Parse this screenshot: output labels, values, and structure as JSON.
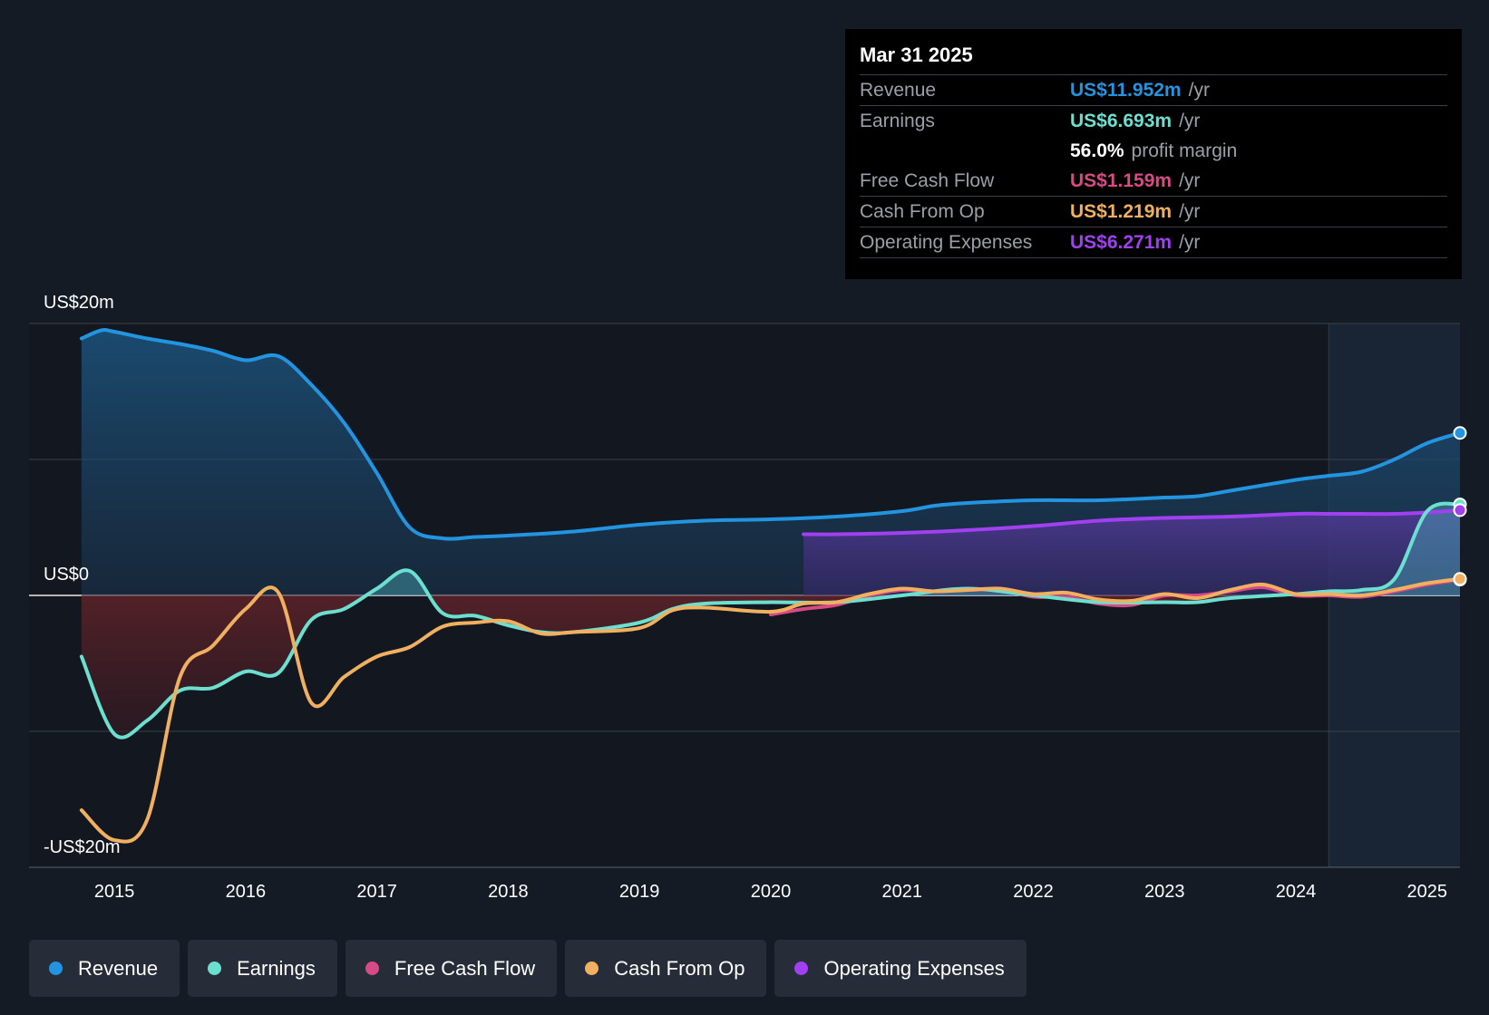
{
  "tooltip": {
    "date": "Mar 31 2025",
    "rows": [
      {
        "label": "Revenue",
        "value": "US$11.952m",
        "unit": "/yr",
        "color": "#2394df"
      },
      {
        "label": "Earnings",
        "value": "US$6.693m",
        "unit": "/yr",
        "color": "#6ce0d0"
      },
      {
        "label": "",
        "value": "56.0%",
        "unit": "profit margin",
        "color": "#ffffff"
      },
      {
        "label": "Free Cash Flow",
        "value": "US$1.159m",
        "unit": "/yr",
        "color": "#d84a86"
      },
      {
        "label": "Cash From Op",
        "value": "US$1.219m",
        "unit": "/yr",
        "color": "#f0b060"
      },
      {
        "label": "Operating Expenses",
        "value": "US$6.271m",
        "unit": "/yr",
        "color": "#a040f0"
      }
    ]
  },
  "legend": [
    {
      "label": "Revenue",
      "color": "#2394df"
    },
    {
      "label": "Earnings",
      "color": "#6ce0d0"
    },
    {
      "label": "Free Cash Flow",
      "color": "#d84a86"
    },
    {
      "label": "Cash From Op",
      "color": "#f0b060"
    },
    {
      "label": "Operating Expenses",
      "color": "#a040f0"
    }
  ],
  "chart_data": {
    "type": "line",
    "y_tick_labels": [
      "US$20m",
      "US$0",
      "-US$20m"
    ],
    "ylim": [
      -20,
      20
    ],
    "y_unit": "US$m",
    "xlim": [
      2014.35,
      2025.25
    ],
    "x_tick_labels": [
      "2015",
      "2016",
      "2017",
      "2018",
      "2019",
      "2020",
      "2021",
      "2022",
      "2023",
      "2024",
      "2025"
    ],
    "x_ticks": [
      2015,
      2016,
      2017,
      2018,
      2019,
      2020,
      2021,
      2022,
      2023,
      2024,
      2025
    ],
    "grid": true,
    "forecast_shade_start": 2024.25,
    "series": [
      {
        "name": "Revenue",
        "color": "#2394df",
        "fill": true,
        "x": [
          2014.75,
          2014.9,
          2015.0,
          2015.25,
          2015.5,
          2015.75,
          2016.0,
          2016.25,
          2016.5,
          2016.75,
          2017.0,
          2017.25,
          2017.5,
          2017.75,
          2018.0,
          2018.5,
          2019.0,
          2019.5,
          2020.0,
          2020.5,
          2021.0,
          2021.25,
          2021.5,
          2022.0,
          2022.5,
          2023.0,
          2023.25,
          2023.5,
          2024.0,
          2024.25,
          2024.5,
          2024.75,
          2025.0,
          2025.25
        ],
        "y": [
          18.9,
          19.5,
          19.4,
          18.9,
          18.5,
          18.0,
          17.3,
          17.6,
          15.5,
          12.7,
          9.0,
          5.0,
          4.2,
          4.3,
          4.4,
          4.7,
          5.2,
          5.5,
          5.6,
          5.8,
          6.2,
          6.6,
          6.8,
          7.0,
          7.0,
          7.2,
          7.3,
          7.7,
          8.5,
          8.8,
          9.1,
          10.0,
          11.2,
          11.952
        ]
      },
      {
        "name": "Earnings",
        "color": "#6ce0d0",
        "fill": true,
        "x": [
          2014.75,
          2015.0,
          2015.25,
          2015.5,
          2015.75,
          2016.0,
          2016.25,
          2016.5,
          2016.75,
          2017.0,
          2017.25,
          2017.5,
          2017.75,
          2018.0,
          2018.25,
          2018.5,
          2019.0,
          2019.25,
          2019.5,
          2020.0,
          2020.5,
          2021.0,
          2021.5,
          2022.0,
          2022.5,
          2023.0,
          2023.25,
          2023.5,
          2024.0,
          2024.25,
          2024.5,
          2024.75,
          2025.0,
          2025.25
        ],
        "y": [
          -4.5,
          -10.2,
          -9.2,
          -7.0,
          -6.8,
          -5.6,
          -5.7,
          -1.8,
          -1.0,
          0.5,
          1.8,
          -1.3,
          -1.5,
          -2.2,
          -2.7,
          -2.7,
          -2.0,
          -1.0,
          -0.6,
          -0.5,
          -0.5,
          0.0,
          0.5,
          0.0,
          -0.5,
          -0.5,
          -0.5,
          -0.2,
          0.1,
          0.3,
          0.4,
          1.2,
          6.2,
          6.693
        ]
      },
      {
        "name": "Free Cash Flow",
        "color": "#d84a86",
        "fill": false,
        "x": [
          2020.0,
          2020.25,
          2020.5,
          2020.75,
          2021.0,
          2021.25,
          2021.5,
          2021.75,
          2022.0,
          2022.25,
          2022.5,
          2022.75,
          2023.0,
          2023.25,
          2023.5,
          2023.75,
          2024.0,
          2024.25,
          2024.5,
          2024.75,
          2025.0,
          2025.25
        ],
        "y": [
          -1.4,
          -1.0,
          -0.7,
          0.0,
          0.4,
          0.3,
          0.4,
          0.4,
          -0.1,
          -0.1,
          -0.6,
          -0.7,
          0.0,
          0.0,
          0.3,
          0.6,
          0.0,
          0.0,
          -0.1,
          0.3,
          0.8,
          1.159
        ]
      },
      {
        "name": "Cash From Op",
        "color": "#f0b060",
        "fill": false,
        "x": [
          2014.75,
          2015.0,
          2015.25,
          2015.5,
          2015.75,
          2016.0,
          2016.25,
          2016.5,
          2016.75,
          2017.0,
          2017.25,
          2017.5,
          2017.75,
          2018.0,
          2018.25,
          2018.5,
          2019.0,
          2019.25,
          2019.5,
          2020.0,
          2020.25,
          2020.5,
          2020.75,
          2021.0,
          2021.25,
          2021.5,
          2021.75,
          2022.0,
          2022.25,
          2022.5,
          2022.75,
          2023.0,
          2023.25,
          2023.5,
          2023.75,
          2024.0,
          2024.25,
          2024.5,
          2024.75,
          2025.0,
          2025.25
        ],
        "y": [
          -15.8,
          -18.0,
          -16.5,
          -6.0,
          -3.7,
          -1.0,
          0.2,
          -7.9,
          -6.0,
          -4.5,
          -3.8,
          -2.3,
          -2.0,
          -1.9,
          -2.8,
          -2.7,
          -2.4,
          -1.1,
          -0.9,
          -1.2,
          -0.6,
          -0.5,
          0.1,
          0.5,
          0.3,
          0.4,
          0.5,
          0.1,
          0.2,
          -0.3,
          -0.4,
          0.1,
          -0.2,
          0.4,
          0.8,
          0.1,
          0.1,
          0.0,
          0.4,
          0.9,
          1.219
        ]
      },
      {
        "name": "Operating Expenses",
        "color": "#a040f0",
        "fill": true,
        "x": [
          2020.25,
          2020.5,
          2021.0,
          2021.5,
          2022.0,
          2022.5,
          2023.0,
          2023.5,
          2024.0,
          2024.25,
          2024.5,
          2024.75,
          2025.0,
          2025.25
        ],
        "y": [
          4.5,
          4.5,
          4.6,
          4.8,
          5.1,
          5.5,
          5.7,
          5.8,
          6.0,
          6.0,
          6.0,
          6.0,
          6.1,
          6.271
        ]
      }
    ]
  }
}
